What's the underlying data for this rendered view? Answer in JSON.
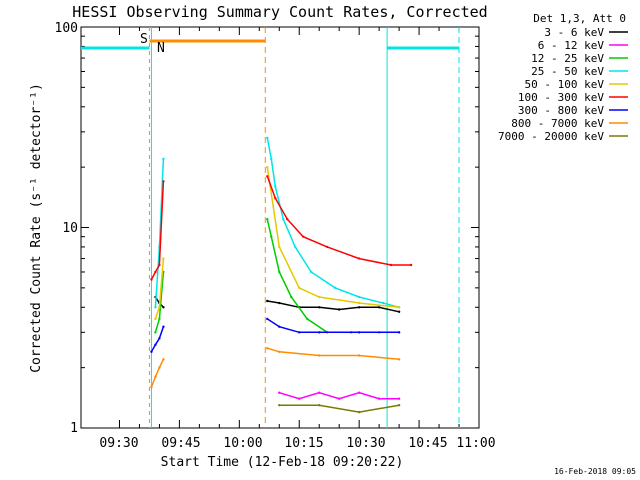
{
  "chart_data": {
    "type": "line",
    "title": "HESSI Observing Summary Count Rates, Corrected",
    "xlabel": "Start Time (12-Feb-18 09:20:22)",
    "ylabel": "Corrected Count Rate (s⁻¹ detector⁻¹)",
    "ylog": true,
    "ylim": [
      1,
      100
    ],
    "xlim": [
      "09:20:22",
      "11:00"
    ],
    "x_tick_labels": [
      "09:30",
      "09:45",
      "10:00",
      "10:15",
      "10:30",
      "10:45",
      "11:00"
    ],
    "y_tick_labels": [
      "1",
      "10",
      "100"
    ],
    "legend_header": "Det 1,3, Att 0",
    "timestamp": "16-Feb-2018 09:05",
    "series": [
      {
        "name": "3 - 6 keV",
        "color": "#000000",
        "segments": [
          {
            "x": [
              "09:39",
              "09:40",
              "09:41"
            ],
            "y": [
              4.5,
              4.2,
              4.0
            ]
          },
          {
            "x": [
              "10:07",
              "10:10",
              "10:15",
              "10:20",
              "10:25",
              "10:30",
              "10:35",
              "10:40"
            ],
            "y": [
              4.3,
              4.2,
              4.0,
              4.0,
              3.9,
              4.0,
              4.0,
              3.8
            ]
          }
        ]
      },
      {
        "name": "6 - 12 keV",
        "color": "#ff00ff",
        "segments": [
          {
            "x": [
              "10:10",
              "10:15",
              "10:20",
              "10:25",
              "10:30",
              "10:35",
              "10:40"
            ],
            "y": [
              1.5,
              1.4,
              1.5,
              1.4,
              1.5,
              1.4,
              1.4
            ]
          }
        ]
      },
      {
        "name": "12 - 25 keV",
        "color": "#00cc00",
        "segments": [
          {
            "x": [
              "09:39",
              "09:40",
              "09:41"
            ],
            "y": [
              3.0,
              3.5,
              6.0
            ]
          },
          {
            "x": [
              "10:07",
              "10:08",
              "10:10",
              "10:13",
              "10:17",
              "10:22",
              "10:28",
              "10:35",
              "10:40"
            ],
            "y": [
              11,
              9,
              6,
              4.5,
              3.5,
              3.0,
              3.0,
              3.0,
              3.0
            ]
          }
        ]
      },
      {
        "name": "25 - 50 keV",
        "color": "#00e5e5",
        "segments": [
          {
            "x": [
              "09:39",
              "09:40",
              "09:41"
            ],
            "y": [
              4.0,
              8.0,
              22
            ]
          },
          {
            "x": [
              "10:07",
              "10:08",
              "10:09",
              "10:11",
              "10:14",
              "10:18",
              "10:24",
              "10:30",
              "10:36",
              "10:40"
            ],
            "y": [
              28,
              22,
              16,
              11,
              8,
              6,
              5,
              4.5,
              4.2,
              4.0
            ]
          }
        ]
      },
      {
        "name": "50 - 100 keV",
        "color": "#e6c800",
        "segments": [
          {
            "x": [
              "09:39",
              "09:40",
              "09:41"
            ],
            "y": [
              3.5,
              4.0,
              7.0
            ]
          },
          {
            "x": [
              "10:07",
              "10:10",
              "10:15",
              "10:20",
              "10:30",
              "10:40"
            ],
            "y": [
              20,
              8,
              5,
              4.5,
              4.2,
              4.0
            ]
          }
        ]
      },
      {
        "name": "100 - 300 keV",
        "color": "#ff0000",
        "segments": [
          {
            "x": [
              "09:38",
              "09:39",
              "09:40",
              "09:41"
            ],
            "y": [
              5.5,
              6.0,
              6.5,
              17
            ]
          },
          {
            "x": [
              "10:07",
              "10:09",
              "10:12",
              "10:16",
              "10:22",
              "10:30",
              "10:38",
              "10:43"
            ],
            "y": [
              18,
              14,
              11,
              9,
              8,
              7,
              6.5,
              6.5
            ]
          }
        ]
      },
      {
        "name": "300 - 800 keV",
        "color": "#0000ff",
        "segments": [
          {
            "x": [
              "09:38",
              "09:39",
              "09:40",
              "09:41"
            ],
            "y": [
              2.4,
              2.6,
              2.8,
              3.2
            ]
          },
          {
            "x": [
              "10:07",
              "10:10",
              "10:15",
              "10:20",
              "10:30",
              "10:40"
            ],
            "y": [
              3.5,
              3.2,
              3.0,
              3.0,
              3.0,
              3.0
            ]
          }
        ]
      },
      {
        "name": "800 - 7000 keV",
        "color": "#ff8c00",
        "segments": [
          {
            "x": [
              "09:38",
              "09:39",
              "09:40",
              "09:41"
            ],
            "y": [
              1.6,
              1.8,
              2.0,
              2.2
            ]
          },
          {
            "x": [
              "10:07",
              "10:10",
              "10:20",
              "10:30",
              "10:40"
            ],
            "y": [
              2.5,
              2.4,
              2.3,
              2.3,
              2.2
            ]
          }
        ]
      },
      {
        "name": "7000 - 20000 keV",
        "color": "#7a7a00",
        "segments": [
          {
            "x": [
              "10:10",
              "10:20",
              "10:30",
              "10:40"
            ],
            "y": [
              1.3,
              1.3,
              1.2,
              1.3
            ]
          }
        ]
      }
    ],
    "annotations": [
      {
        "text": "S",
        "color": "#ff8c00"
      },
      {
        "text": "N",
        "color": "#00e5e5"
      }
    ]
  },
  "overlay_colors": {
    "saa_bar": "#ff8c00",
    "night_bar": "#00e5e5"
  }
}
